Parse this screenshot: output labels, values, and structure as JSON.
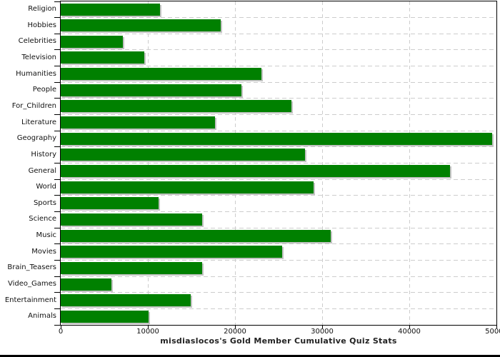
{
  "chart_data": {
    "type": "bar",
    "orientation": "horizontal",
    "title": "misdiaslocos's Gold Member Cumulative Quiz Stats",
    "categories": [
      "Religion",
      "Hobbies",
      "Celebrities",
      "Television",
      "Humanities",
      "People",
      "For_Children",
      "Literature",
      "Geography",
      "History",
      "General",
      "World",
      "Sports",
      "Science",
      "Music",
      "Movies",
      "Brain_Teasers",
      "Video_Games",
      "Entertainment",
      "Animals"
    ],
    "values": [
      11400,
      18400,
      7100,
      9600,
      23000,
      20700,
      26500,
      17700,
      49500,
      28000,
      44700,
      29000,
      11200,
      16200,
      31000,
      25400,
      16200,
      5800,
      14900,
      10100
    ],
    "xlabel": "",
    "ylabel": "",
    "xlim": [
      0,
      50000
    ],
    "x_ticks": [
      0,
      10000,
      20000,
      30000,
      40000,
      50000
    ],
    "x_tick_labels": [
      "0",
      "10000",
      "20000",
      "30000",
      "40000",
      "50000"
    ],
    "grid": true,
    "legend": "none",
    "colors": {
      "bar": "#008000",
      "bar_shadow": "#c3c3c3",
      "gridline": "#cdcdcd",
      "axis": "#000000",
      "text": "#111111",
      "title_text": "#222222",
      "background": "#ffffff"
    }
  }
}
